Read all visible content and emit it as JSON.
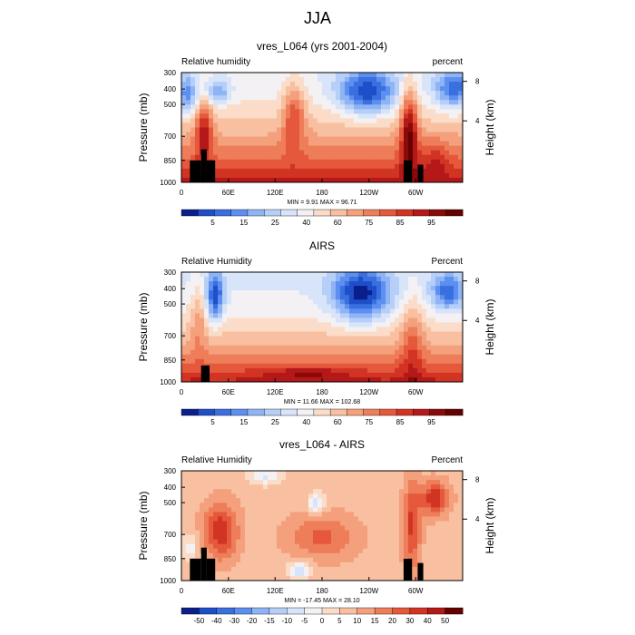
{
  "page_title": "JJA",
  "chart_data": [
    {
      "type": "heatmap",
      "title": "vres_L064 (yrs 2001-2004)",
      "left_label": "Relative humidity",
      "right_label": "percent",
      "ylabel": "Pressure (mb)",
      "ylabel_right": "Height (km)",
      "x_ticks": [
        "0",
        "60E",
        "120E",
        "180",
        "120W",
        "60W"
      ],
      "y_ticks": [
        "300",
        "400",
        "500",
        "700",
        "850",
        "1000"
      ],
      "y2_ticks": [
        "8",
        "4"
      ],
      "stats": "MIN =   9.91   MAX =  96.71",
      "colorbar_labels": [
        "5",
        "15",
        "25",
        "40",
        "60",
        "75",
        "85",
        "95"
      ],
      "colorbar_colors": [
        "#0a1e8c",
        "#1f4fc8",
        "#3a6fe0",
        "#5c8ff0",
        "#8fb4f5",
        "#b6cff8",
        "#d8e4fa",
        "#f3f1f3",
        "#fbdcc8",
        "#f8c0a0",
        "#f4a07c",
        "#ee7d5a",
        "#e5583c",
        "#d23424",
        "#b41818",
        "#8a0a0a",
        "#650000"
      ],
      "range": [
        0,
        100
      ]
    },
    {
      "type": "heatmap",
      "title": "AIRS",
      "left_label": "Relative Humidity",
      "right_label": "Percent",
      "ylabel": "Pressure (mb)",
      "ylabel_right": "Height (km)",
      "x_ticks": [
        "0",
        "60E",
        "120E",
        "180",
        "120W",
        "60W"
      ],
      "y_ticks": [
        "300",
        "400",
        "500",
        "700",
        "850",
        "1000"
      ],
      "y2_ticks": [
        "8",
        "4"
      ],
      "stats": "MIN =  11.66  MAX = 102.68",
      "colorbar_labels": [
        "5",
        "15",
        "25",
        "40",
        "60",
        "75",
        "85",
        "95"
      ],
      "colorbar_colors": [
        "#0a1e8c",
        "#1f4fc8",
        "#3a6fe0",
        "#5c8ff0",
        "#8fb4f5",
        "#b6cff8",
        "#d8e4fa",
        "#f3f1f3",
        "#fbdcc8",
        "#f8c0a0",
        "#f4a07c",
        "#ee7d5a",
        "#e5583c",
        "#d23424",
        "#b41818",
        "#8a0a0a",
        "#650000"
      ],
      "range": [
        0,
        100
      ]
    },
    {
      "type": "heatmap",
      "title": "vres_L064 - AIRS",
      "left_label": "Relative Humidity",
      "right_label": "Percent",
      "ylabel": "Pressure (mb)",
      "ylabel_right": "Height (km)",
      "x_ticks": [
        "0",
        "60E",
        "120E",
        "180",
        "120W",
        "60W"
      ],
      "y_ticks": [
        "300",
        "400",
        "500",
        "700",
        "850",
        "1000"
      ],
      "y2_ticks": [
        "8",
        "4"
      ],
      "stats": "MIN = -17.45  MAX =  28.10",
      "colorbar_labels": [
        "-50",
        "-40",
        "-30",
        "-20",
        "-15",
        "-10",
        "-5",
        "0",
        "5",
        "10",
        "15",
        "20",
        "30",
        "40",
        "50"
      ],
      "colorbar_colors": [
        "#0a1e8c",
        "#1f4fc8",
        "#3a6fe0",
        "#5c8ff0",
        "#8fb4f5",
        "#b6cff8",
        "#d8e4fa",
        "#f3f1f3",
        "#fbdcc8",
        "#f8c0a0",
        "#f4a07c",
        "#ee7d5a",
        "#e5583c",
        "#d23424",
        "#b41818",
        "#650000"
      ],
      "range": [
        -30,
        30
      ]
    }
  ]
}
